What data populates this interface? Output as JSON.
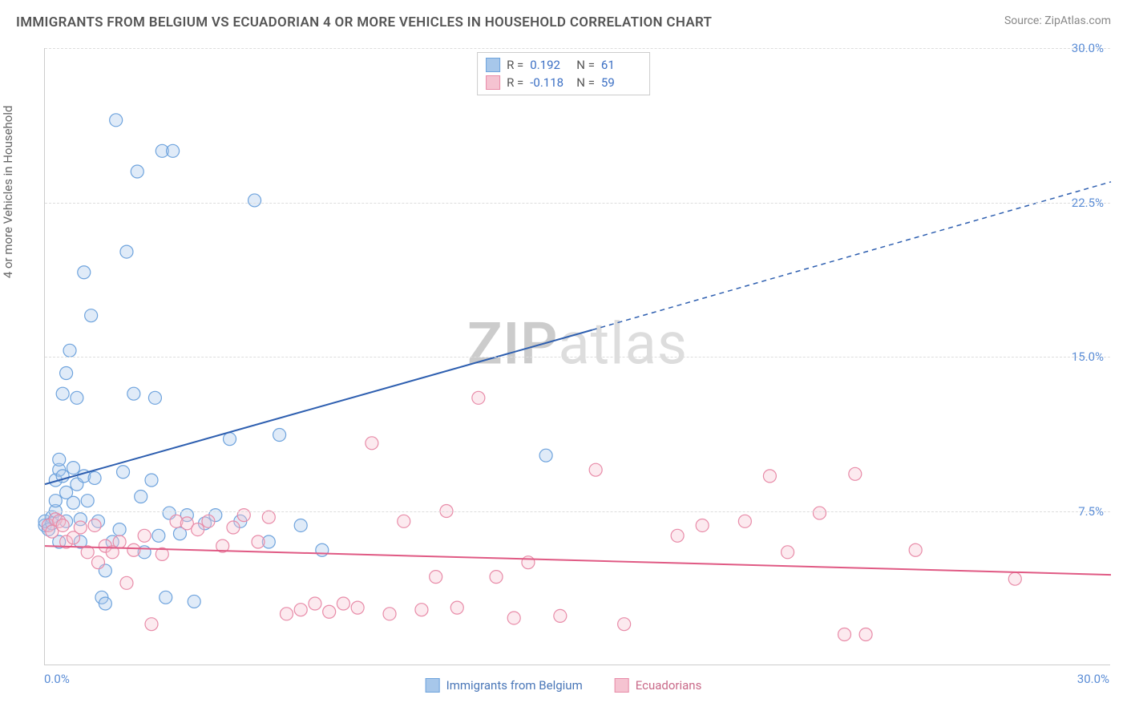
{
  "title": "IMMIGRANTS FROM BELGIUM VS ECUADORIAN 4 OR MORE VEHICLES IN HOUSEHOLD CORRELATION CHART",
  "source": "Source: ZipAtlas.com",
  "y_axis_label": "4 or more Vehicles in Household",
  "watermark_a": "ZIP",
  "watermark_b": "atlas",
  "chart": {
    "type": "scatter",
    "xlim": [
      0,
      30
    ],
    "ylim": [
      0,
      30
    ],
    "xtick_labels": {
      "min": "0.0%",
      "max": "30.0%"
    },
    "ytick_labels": [
      "7.5%",
      "15.0%",
      "22.5%",
      "30.0%"
    ],
    "ytick_values": [
      7.5,
      15.0,
      22.5,
      30.0
    ],
    "grid_color": "#dddddd",
    "tick_color": "#5b8dd6",
    "background": "#ffffff",
    "marker_radius": 8,
    "series": [
      {
        "name": "Immigrants from Belgium",
        "fill": "#a7c7ea",
        "stroke": "#6ea3dd",
        "trend_color": "#2e5fb0",
        "R": "0.192",
        "N": "61",
        "trend": {
          "x1": 0,
          "y1": 8.8,
          "x2": 15.4,
          "y2": 16.3,
          "ext_x2": 30,
          "ext_y2": 23.5
        },
        "points": [
          [
            0.0,
            6.8
          ],
          [
            0.0,
            7.0
          ],
          [
            0.1,
            6.6
          ],
          [
            0.2,
            7.2
          ],
          [
            0.2,
            6.9
          ],
          [
            0.3,
            7.5
          ],
          [
            0.3,
            8.0
          ],
          [
            0.3,
            9.0
          ],
          [
            0.4,
            9.5
          ],
          [
            0.4,
            10.0
          ],
          [
            0.4,
            6.0
          ],
          [
            0.5,
            13.2
          ],
          [
            0.5,
            9.2
          ],
          [
            0.6,
            14.2
          ],
          [
            0.6,
            7.0
          ],
          [
            0.6,
            8.4
          ],
          [
            0.7,
            15.3
          ],
          [
            0.8,
            7.9
          ],
          [
            0.8,
            9.6
          ],
          [
            0.9,
            13.0
          ],
          [
            0.9,
            8.8
          ],
          [
            1.0,
            7.1
          ],
          [
            1.0,
            6.0
          ],
          [
            1.1,
            9.2
          ],
          [
            1.1,
            19.1
          ],
          [
            1.2,
            8.0
          ],
          [
            1.3,
            17.0
          ],
          [
            1.4,
            9.1
          ],
          [
            1.5,
            7.0
          ],
          [
            1.6,
            3.3
          ],
          [
            1.7,
            3.0
          ],
          [
            1.7,
            4.6
          ],
          [
            1.9,
            6.0
          ],
          [
            2.0,
            26.5
          ],
          [
            2.1,
            6.6
          ],
          [
            2.2,
            9.4
          ],
          [
            2.3,
            20.1
          ],
          [
            2.5,
            13.2
          ],
          [
            2.6,
            24.0
          ],
          [
            2.7,
            8.2
          ],
          [
            2.8,
            5.5
          ],
          [
            3.0,
            9.0
          ],
          [
            3.1,
            13.0
          ],
          [
            3.2,
            6.3
          ],
          [
            3.3,
            25.0
          ],
          [
            3.4,
            3.3
          ],
          [
            3.5,
            7.4
          ],
          [
            3.6,
            25.0
          ],
          [
            3.8,
            6.4
          ],
          [
            4.0,
            7.3
          ],
          [
            4.2,
            3.1
          ],
          [
            4.5,
            6.9
          ],
          [
            4.8,
            7.3
          ],
          [
            5.2,
            11.0
          ],
          [
            5.5,
            7.0
          ],
          [
            5.9,
            22.6
          ],
          [
            6.3,
            6.0
          ],
          [
            6.6,
            11.2
          ],
          [
            7.2,
            6.8
          ],
          [
            7.8,
            5.6
          ],
          [
            14.1,
            10.2
          ]
        ]
      },
      {
        "name": "Ecuadorians",
        "fill": "#f5c3d1",
        "stroke": "#e88ba8",
        "trend_color": "#e05a84",
        "R": "-0.118",
        "N": "59",
        "trend": {
          "x1": 0,
          "y1": 5.8,
          "x2": 30,
          "y2": 4.4
        },
        "points": [
          [
            0.1,
            6.8
          ],
          [
            0.2,
            6.5
          ],
          [
            0.3,
            7.1
          ],
          [
            0.4,
            7.0
          ],
          [
            0.5,
            6.8
          ],
          [
            0.6,
            6.0
          ],
          [
            0.8,
            6.2
          ],
          [
            1.0,
            6.7
          ],
          [
            1.2,
            5.5
          ],
          [
            1.4,
            6.8
          ],
          [
            1.5,
            5.0
          ],
          [
            1.7,
            5.8
          ],
          [
            1.9,
            5.5
          ],
          [
            2.1,
            6.0
          ],
          [
            2.3,
            4.0
          ],
          [
            2.5,
            5.6
          ],
          [
            2.8,
            6.3
          ],
          [
            3.0,
            2.0
          ],
          [
            3.3,
            5.4
          ],
          [
            3.7,
            7.0
          ],
          [
            4.0,
            6.9
          ],
          [
            4.3,
            6.6
          ],
          [
            4.6,
            7.0
          ],
          [
            5.0,
            5.8
          ],
          [
            5.3,
            6.7
          ],
          [
            5.6,
            7.3
          ],
          [
            6.0,
            6.0
          ],
          [
            6.3,
            7.2
          ],
          [
            6.8,
            2.5
          ],
          [
            7.2,
            2.7
          ],
          [
            7.6,
            3.0
          ],
          [
            8.0,
            2.6
          ],
          [
            8.4,
            3.0
          ],
          [
            8.8,
            2.8
          ],
          [
            9.2,
            10.8
          ],
          [
            9.7,
            2.5
          ],
          [
            10.1,
            7.0
          ],
          [
            10.6,
            2.7
          ],
          [
            11.0,
            4.3
          ],
          [
            11.3,
            7.5
          ],
          [
            11.6,
            2.8
          ],
          [
            12.2,
            13.0
          ],
          [
            12.7,
            4.3
          ],
          [
            13.2,
            2.3
          ],
          [
            13.6,
            5.0
          ],
          [
            14.5,
            2.4
          ],
          [
            15.5,
            9.5
          ],
          [
            16.3,
            2.0
          ],
          [
            17.8,
            6.3
          ],
          [
            18.5,
            6.8
          ],
          [
            19.7,
            7.0
          ],
          [
            20.4,
            9.2
          ],
          [
            20.9,
            5.5
          ],
          [
            21.8,
            7.4
          ],
          [
            22.5,
            1.5
          ],
          [
            22.8,
            9.3
          ],
          [
            23.1,
            1.5
          ],
          [
            24.5,
            5.6
          ],
          [
            27.3,
            4.2
          ]
        ]
      }
    ]
  },
  "legend_bottom": [
    {
      "label": "Immigrants from Belgium",
      "fill": "#a7c7ea",
      "stroke": "#6ea3dd",
      "text_color": "#4a77b8"
    },
    {
      "label": "Ecuadorians",
      "fill": "#f5c3d1",
      "stroke": "#e88ba8",
      "text_color": "#c96a89"
    }
  ]
}
